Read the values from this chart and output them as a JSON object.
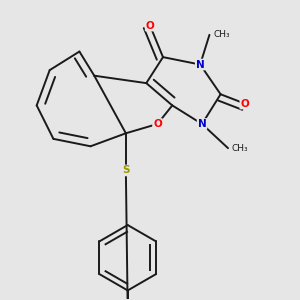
{
  "background_color": "#e6e6e6",
  "bond_color": "#1a1a1a",
  "line_width": 1.4,
  "atom_colors": {
    "O": "#ff0000",
    "N": "#0000cc",
    "S": "#999900",
    "C": "#1a1a1a"
  },
  "font_size_atom": 7.5,
  "font_size_methyl": 6.5
}
